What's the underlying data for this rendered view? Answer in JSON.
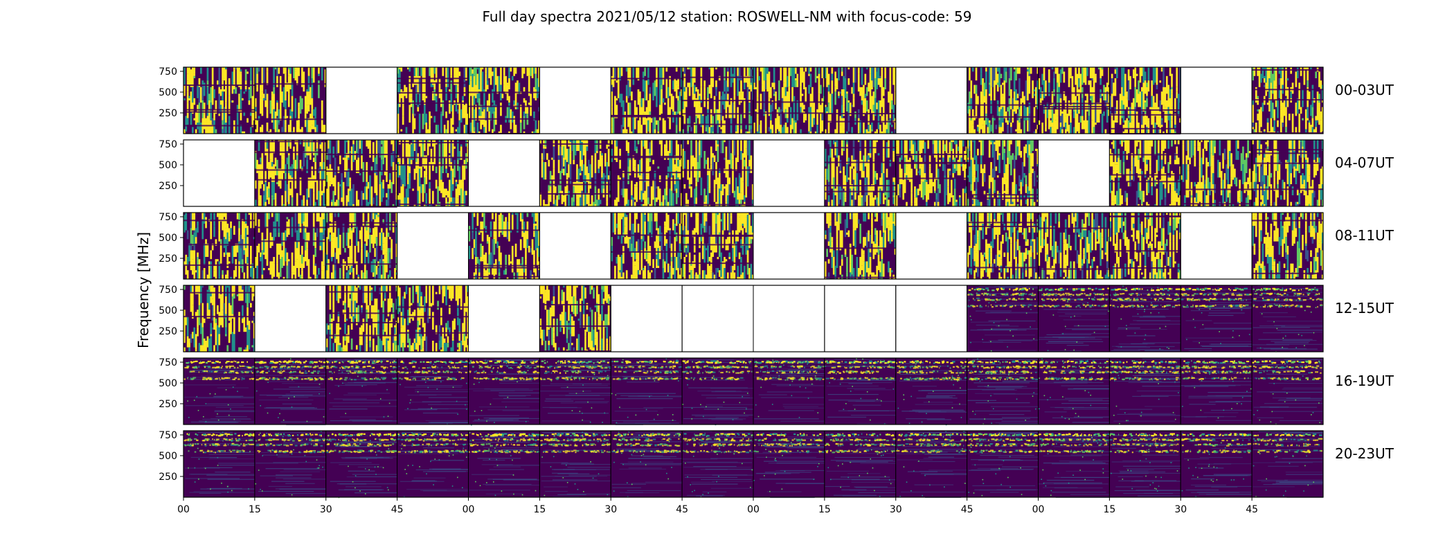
{
  "chart_data": {
    "type": "heatmap",
    "title": "Full day spectra 2021/05/12 station: ROSWELL-NM with focus-code: 59",
    "ylabel": "Frequency [MHz]",
    "xlabel": "",
    "ylim": [
      0,
      800
    ],
    "y_ticks": [
      "750",
      "500",
      "250"
    ],
    "y_tick_values": [
      750,
      500,
      250
    ],
    "x_ticks": [
      "00",
      "15",
      "30",
      "45",
      "00",
      "15",
      "30",
      "45",
      "00",
      "15",
      "30",
      "45",
      "00",
      "15",
      "30",
      "45"
    ],
    "colormap": [
      "#440154",
      "#3b528b",
      "#21918c",
      "#5ec962",
      "#fde725"
    ],
    "background": "#440154",
    "grid": false,
    "rows": [
      {
        "label": "00-03UT",
        "cells": [
          "dense",
          "dense",
          "empty",
          "dense",
          "dense",
          "empty",
          "dense",
          "dense",
          "dense",
          "dense",
          "empty",
          "dense",
          "dense",
          "dense",
          "empty",
          "dense"
        ]
      },
      {
        "label": "04-07UT",
        "cells": [
          "empty",
          "dense",
          "dense",
          "dense",
          "empty",
          "dense",
          "dense",
          "dense",
          "empty",
          "dense",
          "dense",
          "dense",
          "empty",
          "dense",
          "dense",
          "dense"
        ]
      },
      {
        "label": "08-11UT",
        "cells": [
          "dense",
          "dense",
          "dense",
          "empty",
          "dense",
          "empty",
          "dense",
          "dense",
          "empty",
          "dense",
          "empty",
          "dense",
          "dense",
          "dense",
          "empty",
          "dense"
        ]
      },
      {
        "label": "12-15UT",
        "cells": [
          "dense",
          "empty",
          "dense",
          "dense",
          "empty",
          "dense",
          "empty",
          "empty",
          "empty",
          "empty",
          "empty",
          "sparse",
          "sparse",
          "sparse",
          "sparse",
          "sparse"
        ]
      },
      {
        "label": "16-19UT",
        "cells": [
          "sparse",
          "sparse",
          "sparse",
          "sparse",
          "sparse",
          "sparse",
          "sparse",
          "sparse",
          "sparse",
          "sparse",
          "sparse",
          "sparse",
          "sparse",
          "sparse",
          "sparse",
          "sparse"
        ]
      },
      {
        "label": "20-23UT",
        "cells": [
          "sparse",
          "sparse",
          "sparse",
          "sparse",
          "sparse",
          "sparse",
          "sparse",
          "sparse",
          "sparse",
          "sparse",
          "sparse",
          "sparse",
          "sparse",
          "sparse",
          "sparse",
          "sparse"
        ]
      }
    ]
  }
}
